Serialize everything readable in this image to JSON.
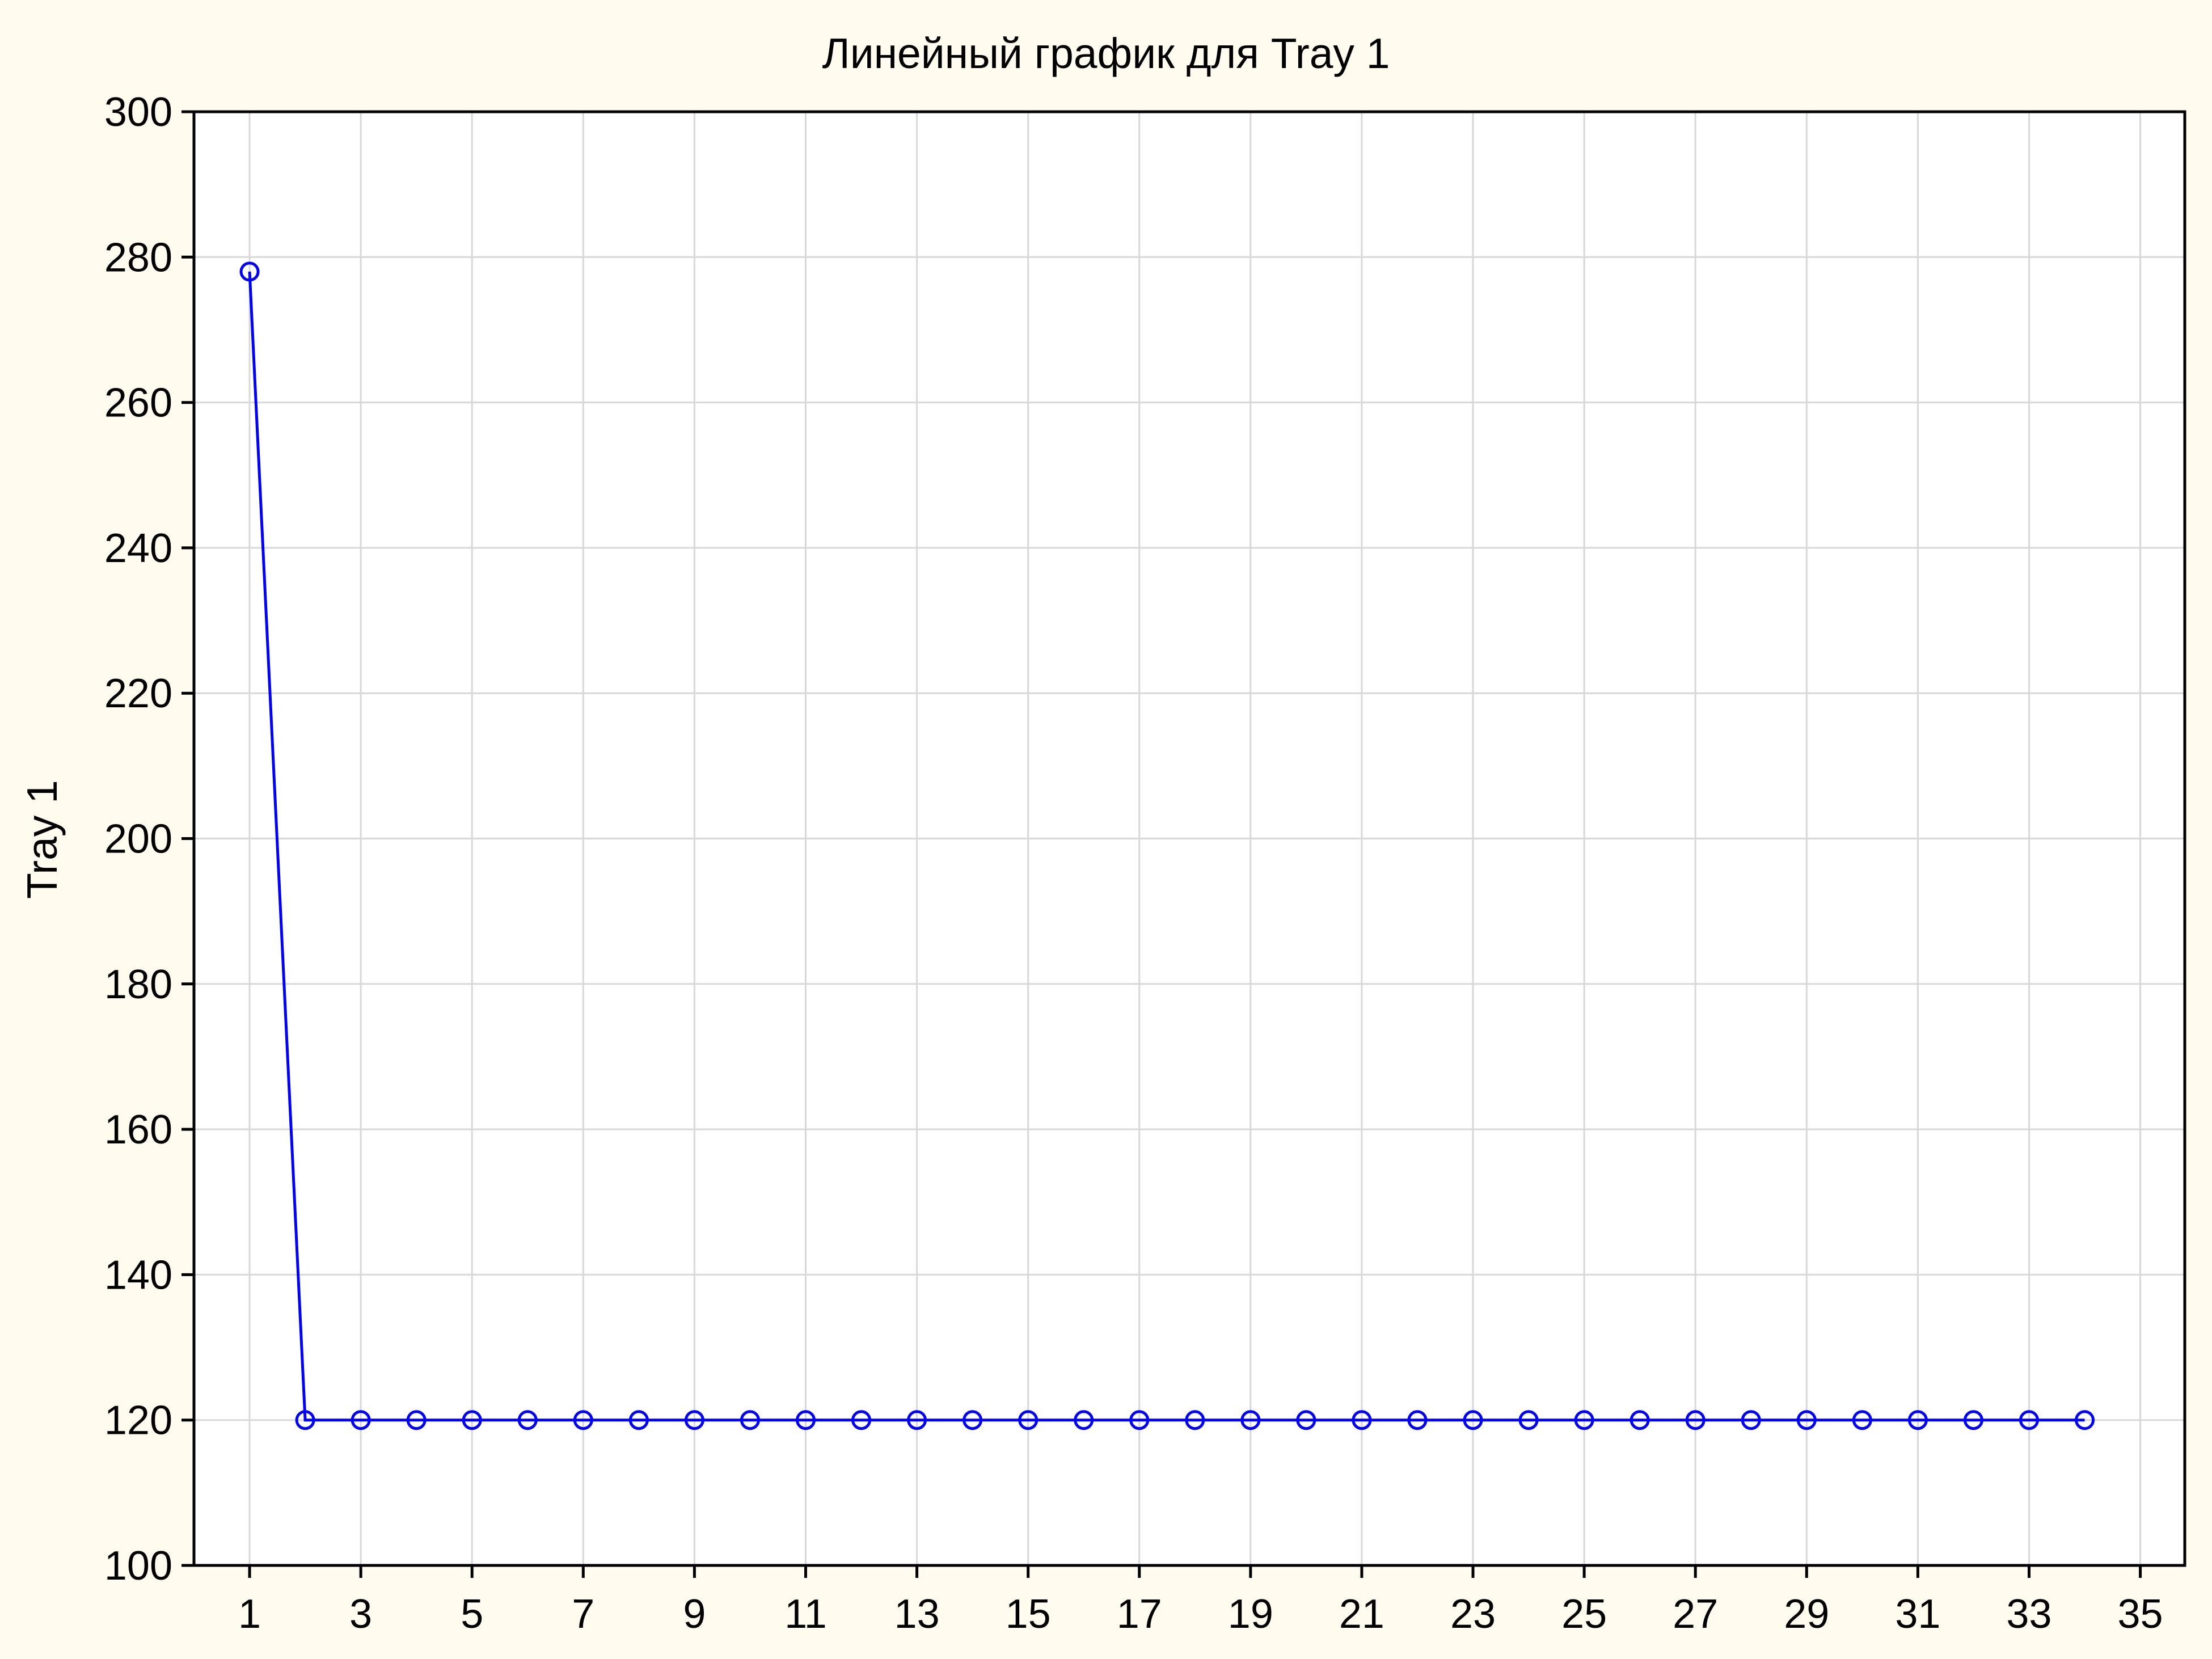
{
  "chart_data": {
    "type": "line",
    "title": "Линейный график для Tray 1",
    "xlabel": "",
    "ylabel": "Tray 1",
    "xlim": [
      0,
      35.8
    ],
    "ylim": [
      100,
      300
    ],
    "x_ticks": [
      1,
      3,
      5,
      7,
      9,
      11,
      13,
      15,
      17,
      19,
      21,
      23,
      25,
      27,
      29,
      31,
      33,
      35
    ],
    "y_ticks": [
      100,
      120,
      140,
      160,
      180,
      200,
      220,
      240,
      260,
      280,
      300
    ],
    "grid": true,
    "series": [
      {
        "color": "#0000ff",
        "marker": "circle",
        "x": [
          1,
          2,
          3,
          4,
          5,
          6,
          7,
          8,
          9,
          10,
          11,
          12,
          13,
          14,
          15,
          16,
          17,
          18,
          19,
          20,
          21,
          22,
          23,
          24,
          25,
          26,
          27,
          28,
          29,
          30,
          31,
          32,
          33,
          34
        ],
        "y": [
          278,
          120,
          120,
          120,
          120,
          120,
          120,
          120,
          120,
          120,
          120,
          120,
          120,
          120,
          120,
          120,
          120,
          120,
          120,
          120,
          120,
          120,
          120,
          120,
          120,
          120,
          120,
          120,
          120,
          120,
          120,
          120,
          120,
          120
        ]
      }
    ]
  }
}
